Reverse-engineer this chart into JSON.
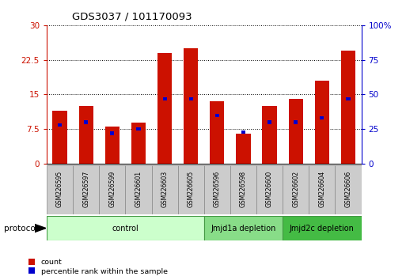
{
  "title": "GDS3037 / 101170093",
  "samples": [
    "GSM226595",
    "GSM226597",
    "GSM226599",
    "GSM226601",
    "GSM226603",
    "GSM226605",
    "GSM226596",
    "GSM226598",
    "GSM226600",
    "GSM226602",
    "GSM226604",
    "GSM226606"
  ],
  "count_values": [
    11.5,
    12.5,
    8.0,
    9.0,
    24.0,
    25.0,
    13.5,
    6.5,
    12.5,
    14.0,
    18.0,
    24.5
  ],
  "percentile_values": [
    28,
    30,
    22,
    25,
    47,
    47,
    35,
    23,
    30,
    30,
    33,
    47
  ],
  "bar_color": "#cc1100",
  "percentile_color": "#0000cc",
  "ylim_left": [
    0,
    30
  ],
  "ylim_right": [
    0,
    100
  ],
  "yticks_left": [
    0,
    7.5,
    15,
    22.5,
    30
  ],
  "ytick_labels_left": [
    "0",
    "7.5",
    "15",
    "22.5",
    "30"
  ],
  "yticks_right": [
    0,
    25,
    50,
    75,
    100
  ],
  "ytick_labels_right": [
    "0",
    "25",
    "50",
    "75",
    "100%"
  ],
  "left_axis_color": "#cc1100",
  "right_axis_color": "#0000cc",
  "group_ranges": [
    [
      0,
      5,
      "control",
      "#ccffcc"
    ],
    [
      6,
      8,
      "Jmjd1a depletion",
      "#88dd88"
    ],
    [
      9,
      11,
      "Jmjd2c depletion",
      "#44bb44"
    ]
  ],
  "protocol_label": "protocol",
  "bar_width": 0.55,
  "grid_color": "#000000",
  "bg_color": "#ffffff"
}
